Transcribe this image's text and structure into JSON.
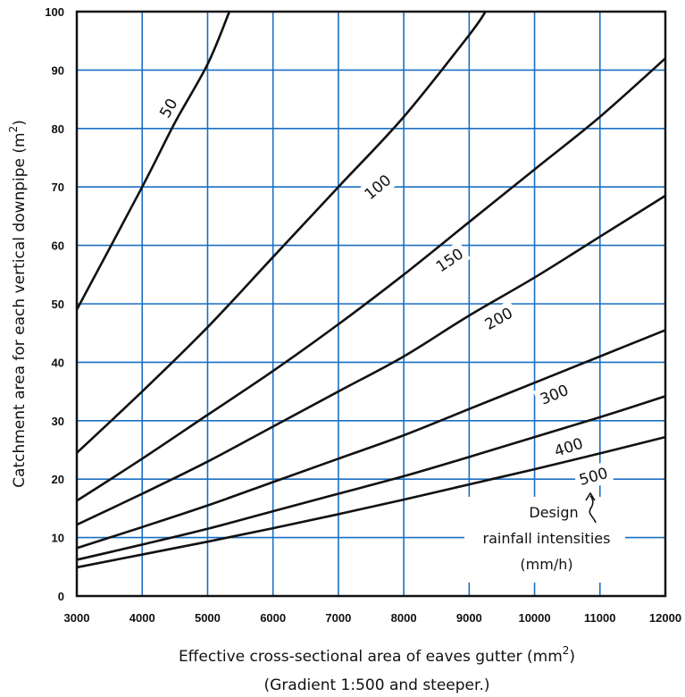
{
  "chart_data": {
    "type": "line",
    "xlabel": "Effective cross-sectional area of eaves gutter (mm",
    "xlabel_sup": "2",
    "xlabel_close": ")",
    "xlabel_sub": "(Gradient 1:500 and steeper.)",
    "ylabel": "Catchment area for each vertical downpipe (m",
    "ylabel_sup": "2",
    "ylabel_close": ")",
    "xlim": [
      3000,
      12000
    ],
    "ylim": [
      0,
      100
    ],
    "x_ticks": [
      3000,
      4000,
      5000,
      6000,
      7000,
      8000,
      9000,
      10000,
      11000,
      12000
    ],
    "y_ticks": [
      0,
      10,
      20,
      30,
      40,
      50,
      60,
      70,
      80,
      90,
      100
    ],
    "grid": true,
    "grid_color": "#1a6fc4",
    "line_color": "#111111",
    "series": [
      {
        "name": "50",
        "x": [
          3000,
          4000,
          4500,
          5000,
          5333
        ],
        "y": [
          49,
          70,
          81,
          91,
          100
        ]
      },
      {
        "name": "100",
        "x": [
          3000,
          4000,
          5000,
          6000,
          7000,
          8000,
          9000,
          9250
        ],
        "y": [
          24.5,
          35,
          46,
          58,
          70,
          82,
          96,
          100
        ]
      },
      {
        "name": "150",
        "x": [
          3000,
          4000,
          5000,
          6000,
          7000,
          8000,
          9000,
          10000,
          11000,
          12000
        ],
        "y": [
          16.3,
          23.5,
          31,
          38.5,
          46.5,
          55,
          64,
          73,
          82,
          92
        ]
      },
      {
        "name": "200",
        "x": [
          3000,
          4000,
          5000,
          6000,
          7000,
          8000,
          9000,
          10000,
          11000,
          12000
        ],
        "y": [
          12.2,
          17.5,
          23,
          29,
          35,
          41,
          48,
          54.5,
          61.5,
          68.5
        ]
      },
      {
        "name": "300",
        "x": [
          3000,
          4000,
          5000,
          6000,
          7000,
          8000,
          9000,
          10000,
          11000,
          12000
        ],
        "y": [
          8.2,
          11.8,
          15.5,
          19.5,
          23.5,
          27.5,
          32,
          36.5,
          41,
          45.5
        ]
      },
      {
        "name": "400",
        "x": [
          3000,
          4000,
          5000,
          6000,
          7000,
          8000,
          9000,
          10000,
          11000,
          12000
        ],
        "y": [
          6.2,
          8.8,
          11.5,
          14.5,
          17.5,
          20.5,
          23.8,
          27.2,
          30.6,
          34.2
        ]
      },
      {
        "name": "500",
        "x": [
          3000,
          4000,
          5000,
          6000,
          7000,
          8000,
          9000,
          10000,
          11000,
          12000
        ],
        "y": [
          4.9,
          7.1,
          9.3,
          11.6,
          14,
          16.5,
          19.1,
          21.7,
          24.4,
          27.2
        ]
      }
    ],
    "annotation": [
      "Design",
      "rainfall intensities",
      "(mm/h)"
    ]
  }
}
